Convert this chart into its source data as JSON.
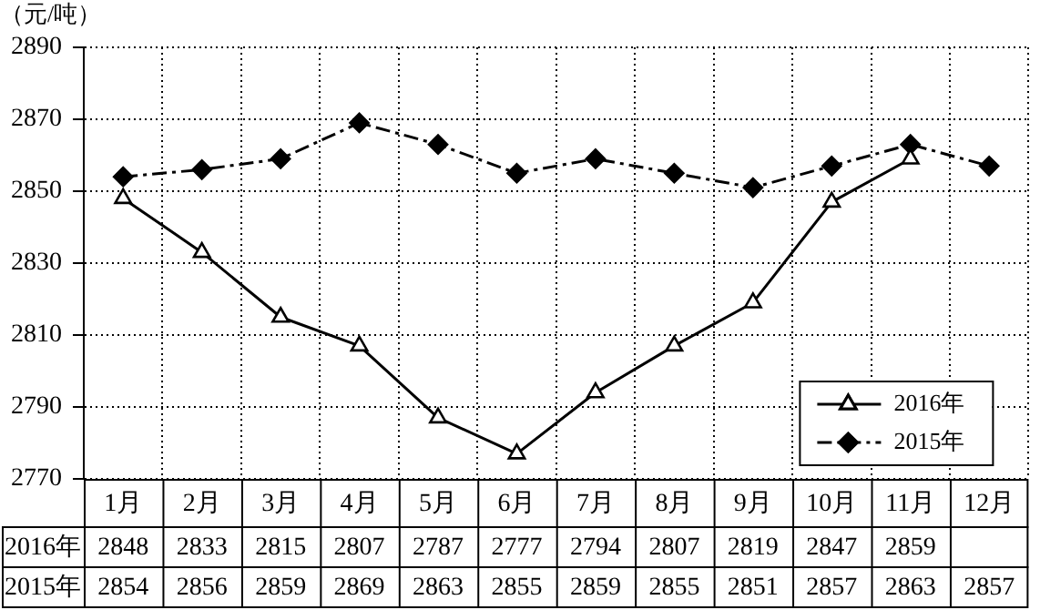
{
  "chart_data": {
    "type": "line",
    "ylabel": "（元/吨）",
    "categories": [
      "1月",
      "2月",
      "3月",
      "4月",
      "5月",
      "6月",
      "7月",
      "8月",
      "9月",
      "10月",
      "11月",
      "12月"
    ],
    "series": [
      {
        "name": "2016年",
        "color": "#000000",
        "marker": "triangle",
        "line_style": "solid",
        "values": [
          2848,
          2833,
          2815,
          2807,
          2787,
          2777,
          2794,
          2807,
          2819,
          2847,
          2859,
          null
        ]
      },
      {
        "name": "2015年",
        "color": "#000000",
        "marker": "diamond",
        "line_style": "dashed",
        "values": [
          2854,
          2856,
          2859,
          2869,
          2863,
          2855,
          2859,
          2855,
          2851,
          2857,
          2863,
          2857
        ]
      }
    ],
    "ylim": [
      2770,
      2890
    ],
    "yticks": [
      2770,
      2790,
      2810,
      2830,
      2850,
      2870,
      2890
    ],
    "grid": true,
    "legend": "bottom right",
    "data_labels": true
  }
}
